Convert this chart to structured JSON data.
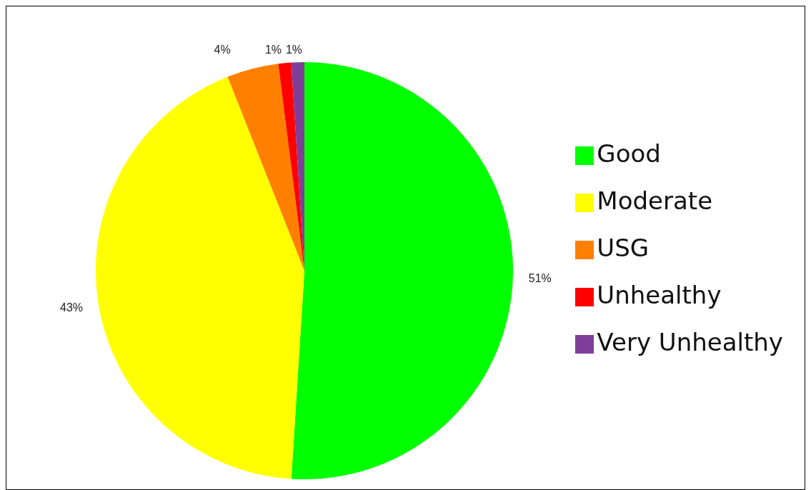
{
  "chart_data": {
    "type": "pie",
    "categories": [
      "Good",
      "Moderate",
      "USG",
      "Unhealthy",
      "Very Unhealthy"
    ],
    "values": [
      51,
      43,
      4,
      1,
      1
    ],
    "colors": [
      "#00ff00",
      "#ffff00",
      "#ff8000",
      "#ff0000",
      "#7f3f98"
    ],
    "value_labels": [
      "51%",
      "43%",
      "4%",
      "1%",
      "1%"
    ],
    "legend": "right"
  }
}
